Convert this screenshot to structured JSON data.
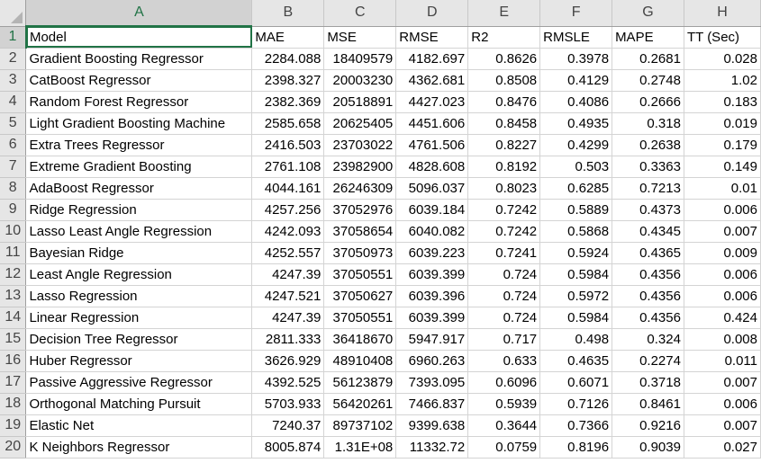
{
  "spreadsheet": {
    "column_letters": [
      "A",
      "B",
      "C",
      "D",
      "E",
      "F",
      "G",
      "H"
    ],
    "selected_column": "A",
    "active_cell": "A1",
    "rows": [
      [
        "Model",
        "MAE",
        "MSE",
        "RMSE",
        "R2",
        "RMSLE",
        "MAPE",
        "TT (Sec)"
      ],
      [
        "Gradient Boosting Regressor",
        "2284.088",
        "18409579",
        "4182.697",
        "0.8626",
        "0.3978",
        "0.2681",
        "0.028"
      ],
      [
        "CatBoost Regressor",
        "2398.327",
        "20003230",
        "4362.681",
        "0.8508",
        "0.4129",
        "0.2748",
        "1.02"
      ],
      [
        "Random Forest Regressor",
        "2382.369",
        "20518891",
        "4427.023",
        "0.8476",
        "0.4086",
        "0.2666",
        "0.183"
      ],
      [
        "Light Gradient Boosting Machine",
        "2585.658",
        "20625405",
        "4451.606",
        "0.8458",
        "0.4935",
        "0.318",
        "0.019"
      ],
      [
        "Extra Trees Regressor",
        "2416.503",
        "23703022",
        "4761.506",
        "0.8227",
        "0.4299",
        "0.2638",
        "0.179"
      ],
      [
        "Extreme Gradient Boosting",
        "2761.108",
        "23982900",
        "4828.608",
        "0.8192",
        "0.503",
        "0.3363",
        "0.149"
      ],
      [
        "AdaBoost Regressor",
        "4044.161",
        "26246309",
        "5096.037",
        "0.8023",
        "0.6285",
        "0.7213",
        "0.01"
      ],
      [
        "Ridge Regression",
        "4257.256",
        "37052976",
        "6039.184",
        "0.7242",
        "0.5889",
        "0.4373",
        "0.006"
      ],
      [
        "Lasso Least Angle Regression",
        "4242.093",
        "37058654",
        "6040.082",
        "0.7242",
        "0.5868",
        "0.4345",
        "0.007"
      ],
      [
        "Bayesian Ridge",
        "4252.557",
        "37050973",
        "6039.223",
        "0.7241",
        "0.5924",
        "0.4365",
        "0.009"
      ],
      [
        "Least Angle Regression",
        "4247.39",
        "37050551",
        "6039.399",
        "0.724",
        "0.5984",
        "0.4356",
        "0.006"
      ],
      [
        "Lasso Regression",
        "4247.521",
        "37050627",
        "6039.396",
        "0.724",
        "0.5972",
        "0.4356",
        "0.006"
      ],
      [
        "Linear Regression",
        "4247.39",
        "37050551",
        "6039.399",
        "0.724",
        "0.5984",
        "0.4356",
        "0.424"
      ],
      [
        "Decision Tree Regressor",
        "2811.333",
        "36418670",
        "5947.917",
        "0.717",
        "0.498",
        "0.324",
        "0.008"
      ],
      [
        "Huber Regressor",
        "3626.929",
        "48910408",
        "6960.263",
        "0.633",
        "0.4635",
        "0.2274",
        "0.011"
      ],
      [
        "Passive Aggressive Regressor",
        "4392.525",
        "56123879",
        "7393.095",
        "0.6096",
        "0.6071",
        "0.3718",
        "0.007"
      ],
      [
        "Orthogonal Matching Pursuit",
        "5703.933",
        "56420261",
        "7466.837",
        "0.5939",
        "0.7126",
        "0.8461",
        "0.006"
      ],
      [
        "Elastic Net",
        "7240.37",
        "89737102",
        "9399.638",
        "0.3644",
        "0.7366",
        "0.9216",
        "0.007"
      ],
      [
        "K Neighbors Regressor",
        "8005.874",
        "1.31E+08",
        "11332.72",
        "0.0759",
        "0.8196",
        "0.9039",
        "0.027"
      ]
    ]
  }
}
